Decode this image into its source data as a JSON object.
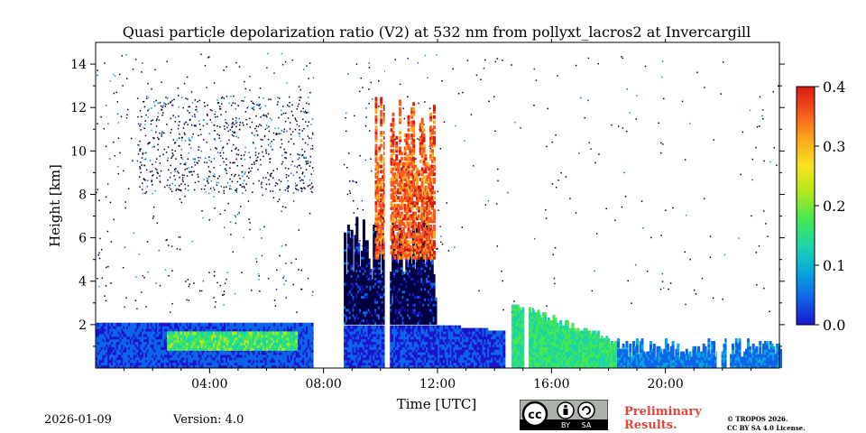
{
  "colors": {
    "cmap": [
      "#1a14cc",
      "#0e64e8",
      "#06a8e0",
      "#1cd6a8",
      "#44e850",
      "#b2e81c",
      "#f6e41c",
      "#fca81c",
      "#f8581c",
      "#d81a12"
    ],
    "no_signal": "#ffffff",
    "preliminary": "#e8423a"
  },
  "chart_data": {
    "type": "heatmap",
    "title": "Quasi particle depolarization ratio (V2) at 532 nm from pollyxt_lacros2 at Invercargill",
    "xlabel": "Time [UTC]",
    "ylabel": "Height [km]",
    "xlim": [
      0,
      24
    ],
    "ylim": [
      0,
      15
    ],
    "x_ticks": [
      {
        "value": 4,
        "label": "04:00"
      },
      {
        "value": 8,
        "label": "08:00"
      },
      {
        "value": 12,
        "label": "12:00"
      },
      {
        "value": 16,
        "label": "16:00"
      },
      {
        "value": 20,
        "label": "20:00"
      }
    ],
    "y_ticks": [
      {
        "value": 2,
        "label": "2"
      },
      {
        "value": 4,
        "label": "4"
      },
      {
        "value": 6,
        "label": "6"
      },
      {
        "value": 8,
        "label": "8"
      },
      {
        "value": 10,
        "label": "10"
      },
      {
        "value": 12,
        "label": "12"
      },
      {
        "value": 14,
        "label": "14"
      }
    ],
    "colorbar": {
      "range": [
        0.0,
        0.4
      ],
      "ticks": [
        {
          "value": 0.0,
          "label": "0.0"
        },
        {
          "value": 0.1,
          "label": "0.1"
        },
        {
          "value": 0.2,
          "label": "0.2"
        },
        {
          "value": 0.3,
          "label": "0.3"
        },
        {
          "value": 0.4,
          "label": "0.4"
        }
      ]
    },
    "data_gaps_hours": [
      [
        7.65,
        8.65
      ],
      [
        10.15,
        10.3
      ],
      [
        15.05,
        15.2
      ],
      [
        21.8,
        21.9
      ],
      [
        22.15,
        22.25
      ]
    ],
    "regions": [
      {
        "name": "boundary-layer-early",
        "t": [
          0,
          7.65
        ],
        "h": [
          0,
          2.0
        ],
        "depol": [
          0.02,
          0.08
        ]
      },
      {
        "name": "aerosol-band-morning",
        "t": [
          2.5,
          7.0
        ],
        "h": [
          0.8,
          1.6
        ],
        "depol": [
          0.12,
          0.22
        ]
      },
      {
        "name": "cloud-layer-morning",
        "t": [
          8.65,
          11.9
        ],
        "h": [
          2.0,
          4.5
        ],
        "depol": [
          0.0,
          0.02
        ]
      },
      {
        "name": "ice-cloud",
        "t": [
          9.8,
          11.9
        ],
        "h": [
          5.0,
          12.5
        ],
        "depol": [
          0.3,
          0.38
        ]
      },
      {
        "name": "boundary-layer-midday",
        "t": [
          8.65,
          14.3
        ],
        "h": [
          0,
          1.8
        ],
        "depol": [
          0.02,
          0.06
        ]
      },
      {
        "name": "dust-layer-afternoon",
        "t": [
          14.6,
          18.3
        ],
        "h": [
          0,
          2.4
        ],
        "depol": [
          0.12,
          0.2
        ]
      },
      {
        "name": "boundary-layer-evening",
        "t": [
          18.3,
          24
        ],
        "h": [
          0,
          1.0
        ],
        "depol": [
          0.04,
          0.1
        ]
      }
    ]
  },
  "footer": {
    "date": "2026-01-09",
    "version": "Version: 4.0",
    "preliminary_line1": "Preliminary",
    "preliminary_line2": "Results.",
    "copyright_line1": "© TROPOS 2026.",
    "copyright_line2": "CC BY SA 4.0 License.",
    "license_badge": {
      "text_cc": "cc",
      "text_by": "BY",
      "text_sa": "SA"
    }
  }
}
